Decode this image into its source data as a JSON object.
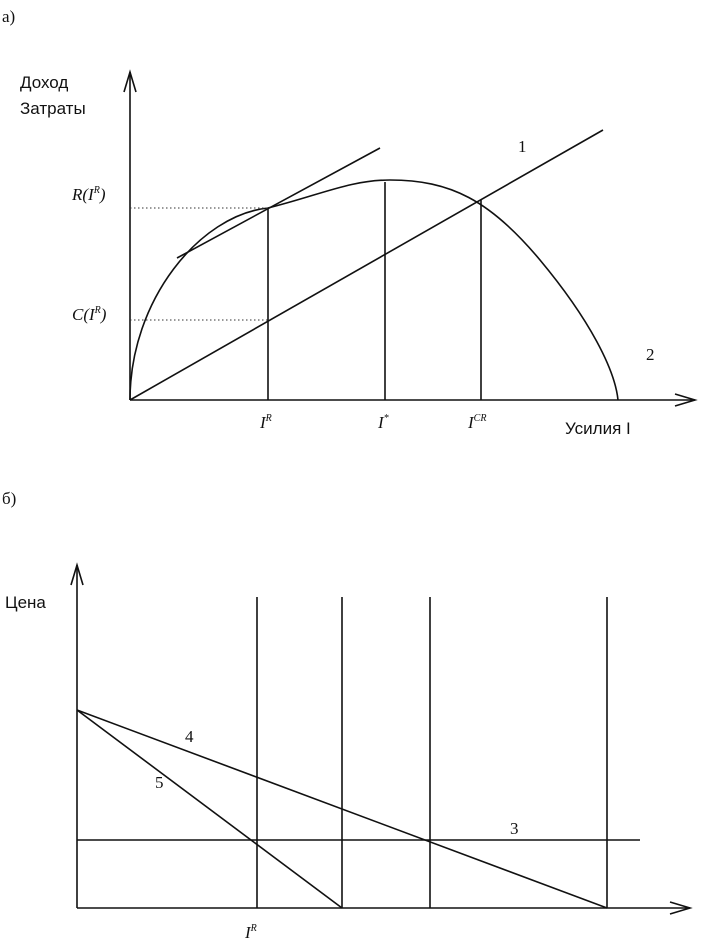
{
  "panel_a": {
    "label": "а)",
    "y_axis_label": [
      "Доход",
      "Затраты"
    ],
    "value_labels": [
      {
        "main": "R(I",
        "sup": "R",
        "tail": ")"
      },
      {
        "main": "C(I",
        "sup": "R",
        "tail": ")"
      }
    ],
    "x_labels": [
      {
        "main": "I",
        "sup": "R"
      },
      {
        "main": "I",
        "sup": "*"
      },
      {
        "main": "I",
        "sup": "CR"
      }
    ],
    "x_axis_label": "Усилия I",
    "curve_labels": [
      "1",
      "2"
    ]
  },
  "panel_b": {
    "label": "б)",
    "y_axis_label": "Цена",
    "curve_labels": [
      "4",
      "5",
      "3"
    ],
    "x_labels": [
      {
        "main": "I",
        "sup": "R"
      }
    ]
  }
}
